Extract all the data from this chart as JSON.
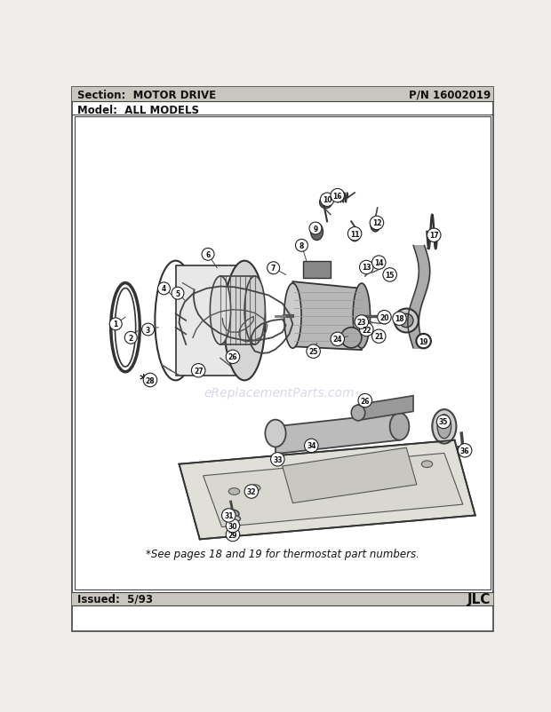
{
  "section_label": "Section:  MOTOR DRIVE",
  "pn_label": "P/N 16002019",
  "model_label": "Model:  ALL MODELS",
  "issued_label": "Issued:  5/93",
  "jlc_label": "JLC",
  "footnote": "*See pages 18 and 19 for thermostat part numbers.",
  "watermark": "eReplacementParts.com",
  "bg_color": "#f0eeea",
  "page_bg": "#ffffff",
  "header_bg": "#c8c6bf",
  "border_color": "#444444",
  "text_color": "#111111",
  "fig_width": 6.2,
  "fig_height": 8.03,
  "dpi": 100
}
